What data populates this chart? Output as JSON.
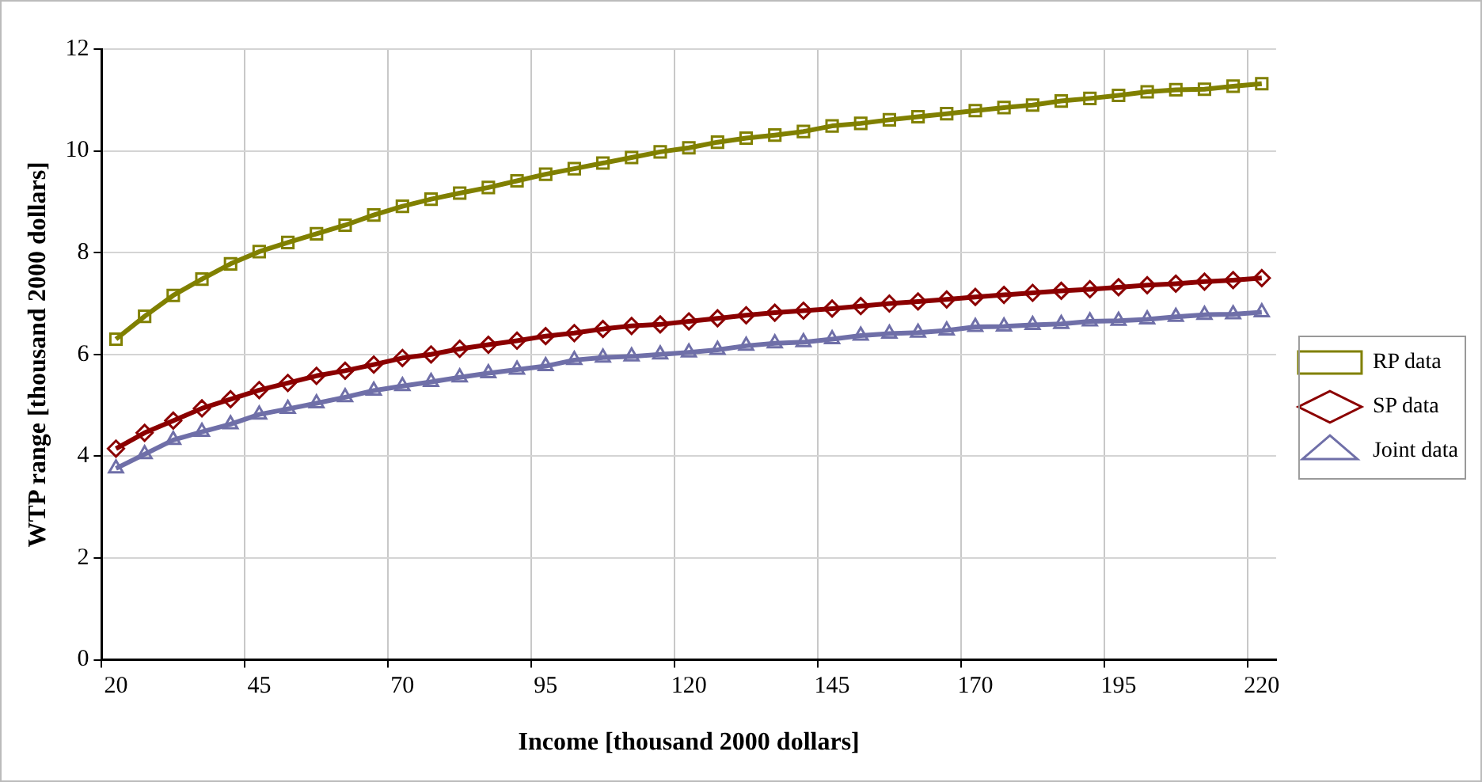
{
  "chart_data": {
    "type": "line",
    "xlabel": "Income [thousand 2000 dollars]",
    "ylabel": "WTP range [thousand 2000 dollars]",
    "categories": [
      "20",
      null,
      null,
      null,
      null,
      "45",
      null,
      null,
      null,
      null,
      "70",
      null,
      null,
      null,
      null,
      "95",
      null,
      null,
      null,
      null,
      "120",
      null,
      null,
      null,
      null,
      "145",
      null,
      null,
      null,
      null,
      "170",
      null,
      null,
      null,
      null,
      "195",
      null,
      null,
      null,
      null,
      "220"
    ],
    "series": [
      {
        "name": "RP data",
        "color": "#808000",
        "marker": "square",
        "values": [
          6.3,
          6.75,
          7.16,
          7.48,
          7.78,
          8.02,
          8.2,
          8.37,
          8.54,
          8.74,
          8.91,
          9.05,
          9.17,
          9.28,
          9.41,
          9.54,
          9.65,
          9.76,
          9.87,
          9.98,
          10.06,
          10.17,
          10.25,
          10.31,
          10.38,
          10.49,
          10.54,
          10.61,
          10.67,
          10.73,
          10.79,
          10.85,
          10.9,
          10.98,
          11.03,
          11.09,
          11.16,
          11.2,
          11.21,
          11.27,
          11.32
        ]
      },
      {
        "name": "SP data",
        "color": "#8b0000",
        "marker": "diamond",
        "values": [
          4.15,
          4.46,
          4.7,
          4.94,
          5.12,
          5.3,
          5.44,
          5.58,
          5.68,
          5.8,
          5.93,
          6.0,
          6.11,
          6.19,
          6.27,
          6.36,
          6.42,
          6.5,
          6.56,
          6.59,
          6.65,
          6.71,
          6.77,
          6.82,
          6.86,
          6.9,
          6.95,
          7.0,
          7.04,
          7.08,
          7.13,
          7.17,
          7.21,
          7.25,
          7.28,
          7.32,
          7.36,
          7.39,
          7.43,
          7.46,
          7.5
        ]
      },
      {
        "name": "Joint data",
        "color": "#6f6fa8",
        "marker": "triangle",
        "values": [
          3.76,
          4.04,
          4.32,
          4.48,
          4.63,
          4.82,
          4.93,
          5.04,
          5.16,
          5.29,
          5.38,
          5.46,
          5.55,
          5.63,
          5.7,
          5.77,
          5.89,
          5.94,
          5.96,
          6.0,
          6.04,
          6.09,
          6.17,
          6.22,
          6.24,
          6.3,
          6.37,
          6.41,
          6.43,
          6.47,
          6.54,
          6.55,
          6.58,
          6.6,
          6.65,
          6.66,
          6.69,
          6.74,
          6.78,
          6.79,
          6.83
        ]
      }
    ],
    "ylim": [
      0,
      12
    ],
    "yticks": [
      0,
      2,
      4,
      6,
      8,
      10,
      12
    ],
    "grid": true,
    "legend": "right",
    "line_style": "solid"
  }
}
